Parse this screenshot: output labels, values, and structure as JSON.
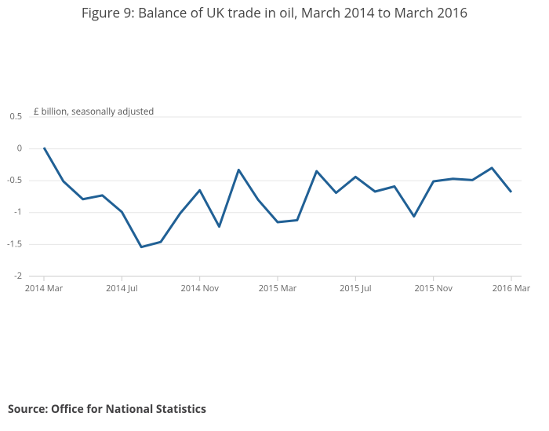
{
  "chart_data": {
    "type": "line",
    "title": "Figure 9: Balance of UK trade in oil, March 2014 to March 2016",
    "y_label": "£ billion, seasonally adjusted",
    "source": "Source: Office for National Statistics",
    "categories": [
      "2014 Mar",
      null,
      null,
      null,
      "2014 Jul",
      null,
      null,
      null,
      "2014 Nov",
      null,
      null,
      null,
      "2015 Mar",
      null,
      null,
      null,
      "2015 Jul",
      null,
      null,
      null,
      "2015 Nov",
      null,
      null,
      null,
      "2016 Mar"
    ],
    "series": [
      {
        "name": "Balance of UK trade in oil",
        "color": "#206095",
        "values": [
          0.02,
          -0.51,
          -0.79,
          -0.73,
          -0.99,
          -1.54,
          -1.46,
          -1.01,
          -0.65,
          -1.22,
          -0.33,
          -0.8,
          -1.15,
          -1.12,
          -0.35,
          -0.69,
          -0.44,
          -0.67,
          -0.59,
          -1.06,
          -0.51,
          -0.47,
          -0.49,
          -0.3,
          -0.68
        ]
      }
    ],
    "ylim": [
      -2,
      0.5
    ],
    "yticks": [
      0.5,
      0,
      -0.5,
      -1,
      -1.5,
      -2
    ],
    "grid": true
  }
}
